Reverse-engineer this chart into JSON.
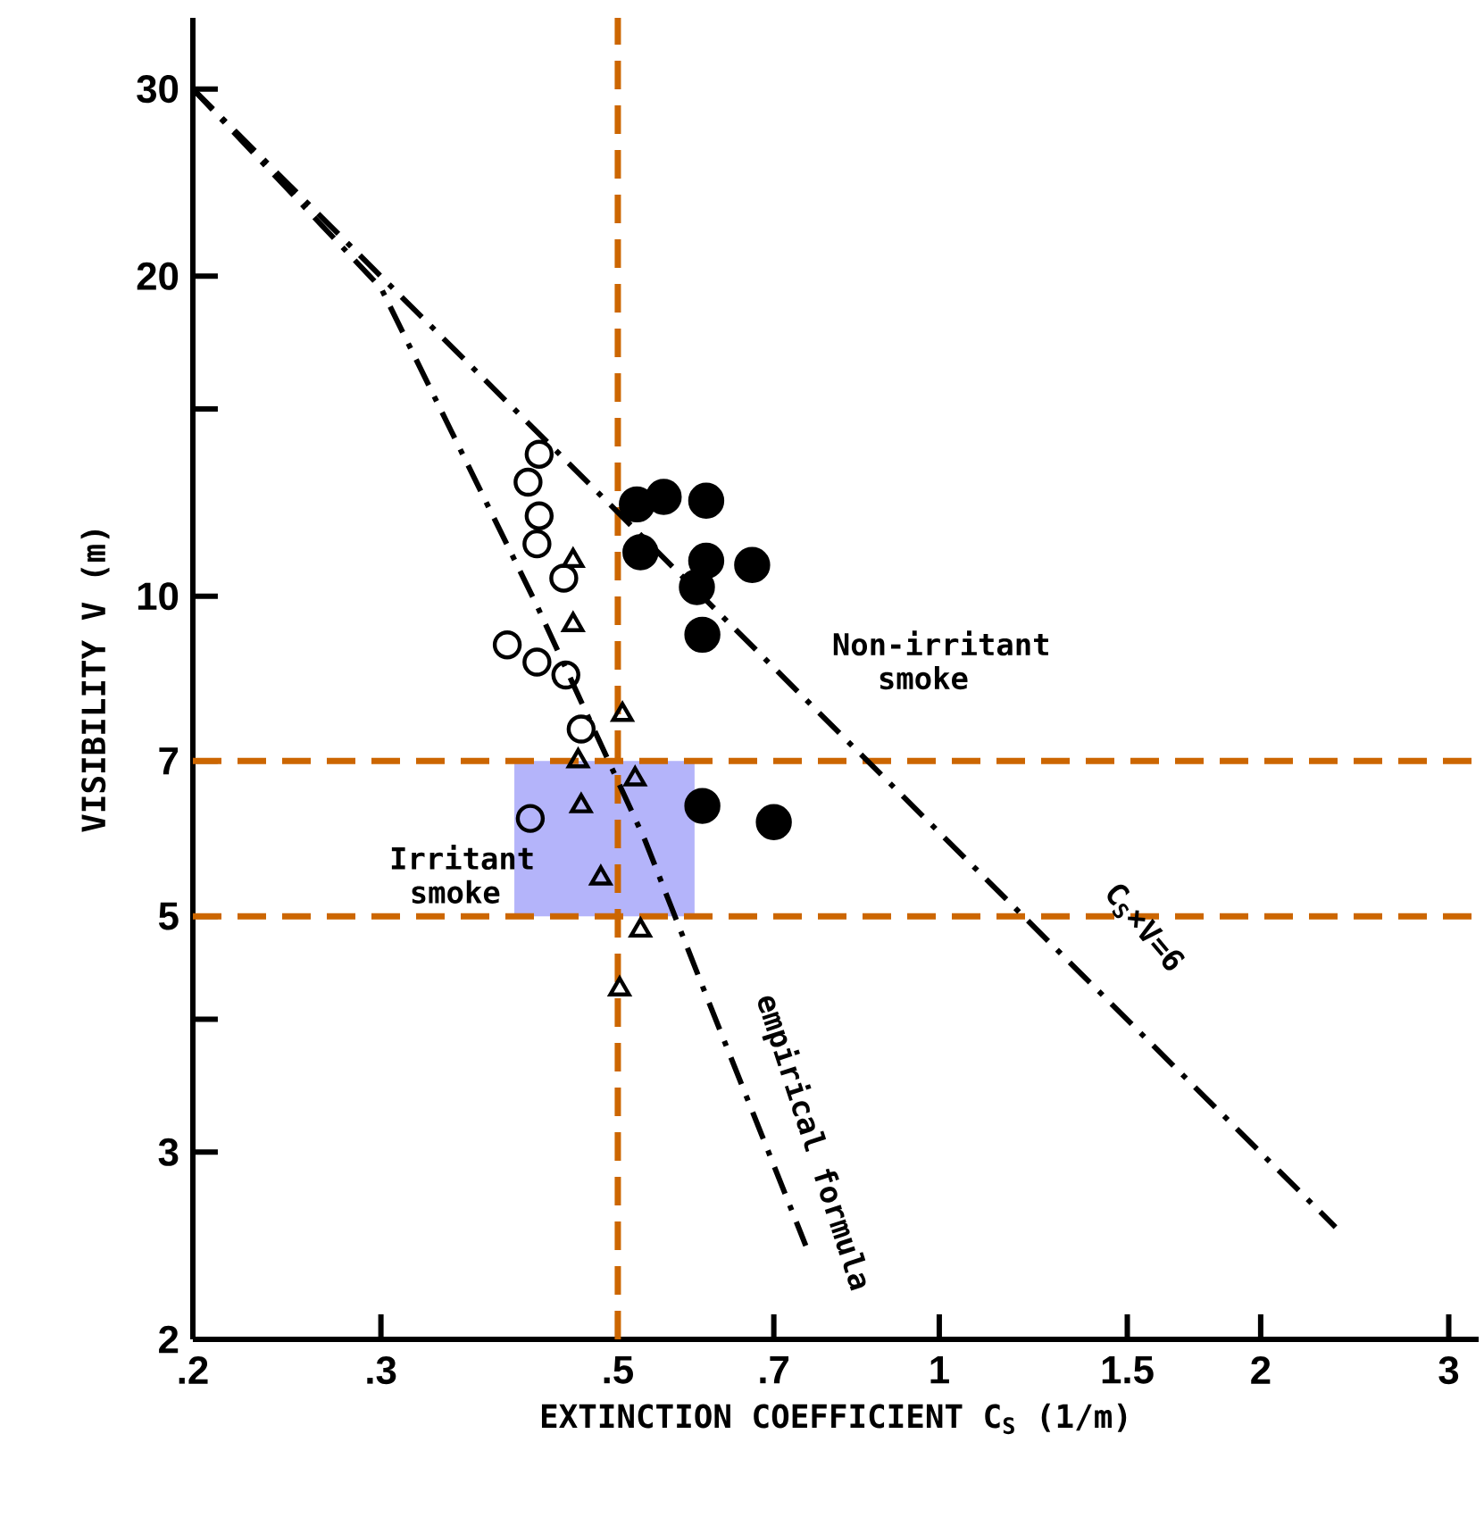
{
  "chart_data": {
    "type": "scatter",
    "xlabel": "EXTINCTION COEFFICIENT C$_{S}$ (1/m)",
    "ylabel": "VISIBILITY V (m)",
    "log": "xy",
    "grid": false,
    "xlim": [
      0.2,
      3.2
    ],
    "ylim": [
      2,
      35
    ],
    "xticks": [
      {
        "value": 0.2,
        "label": ".2"
      },
      {
        "value": 0.3,
        "label": ".3"
      },
      {
        "value": 0.5,
        "label": ".5"
      },
      {
        "value": 0.7,
        "label": ".7"
      },
      1,
      1.5,
      2,
      3
    ],
    "yticks": [
      2,
      3,
      {
        "value": 4,
        "label": null
      },
      5,
      7,
      10,
      {
        "value": 15,
        "label": null
      },
      20,
      30
    ],
    "series": [
      {
        "type": "line",
        "line_style": "dashed",
        "marker": "none",
        "color": "#000000",
        "x": [
          0.2,
          2.35
        ],
        "values": [
          30,
          2.55
        ]
      },
      {
        "type": "line",
        "line_style": "dashed",
        "marker": "none",
        "color": "#000000",
        "x": [
          0.2,
          0.3,
          0.42,
          0.53,
          0.6,
          0.75
        ],
        "values": [
          30,
          19.5,
          9.8,
          5.9,
          4.3,
          2.45
        ]
      },
      {
        "marker": "circle",
        "color": "#000000",
        "x": [
          0.422,
          0.412,
          0.422,
          0.42,
          0.445,
          0.394,
          0.42,
          0.447,
          0.462,
          0.414
        ],
        "values": [
          13.6,
          12.8,
          11.9,
          11.2,
          10.4,
          9.0,
          8.67,
          8.43,
          7.5,
          6.18
        ]
      },
      {
        "marker": "triangle",
        "color": "#000000",
        "x": [
          0.454,
          0.454,
          0.505,
          0.459,
          0.462,
          0.519,
          0.482,
          0.525,
          0.502
        ],
        "values": [
          10.8,
          9.4,
          7.74,
          7.0,
          6.35,
          6.73,
          5.43,
          4.85,
          4.27
        ]
      },
      {
        "marker": "circle",
        "color": "#000000",
        "x": [
          0.521,
          0.552,
          0.605,
          0.525,
          0.605,
          0.668,
          0.593,
          0.6,
          0.6,
          0.7
        ],
        "values": [
          12.2,
          12.4,
          12.3,
          11.0,
          10.8,
          10.7,
          10.2,
          9.2,
          6.35,
          6.13
        ]
      }
    ],
    "ref_lines": [
      {
        "axis": "x",
        "value": 0.5,
        "color": "#cc6600",
        "line_style": "dashed"
      },
      {
        "axis": "y",
        "value": 7,
        "color": "#cc6600",
        "line_style": "dashed"
      },
      {
        "axis": "y",
        "value": 5,
        "color": "#cc6600",
        "line_style": "dashed"
      }
    ],
    "bands": [
      {
        "axis": "x",
        "from": 0.4,
        "to": 0.59,
        "color": "#b4b4fa"
      }
    ],
    "annotations": [
      "Non-irritant smoke",
      "Irritant smoke",
      "empirical formula",
      "C$_{S}$×V=6"
    ]
  }
}
